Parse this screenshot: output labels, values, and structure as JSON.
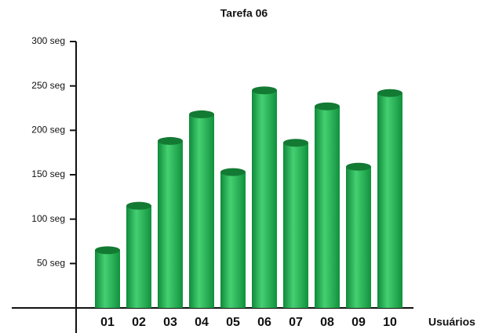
{
  "chart_data": {
    "type": "bar",
    "title": "Tarefa 06",
    "x_label": "Usuários",
    "categories": [
      "01",
      "02",
      "03",
      "04",
      "05",
      "06",
      "07",
      "08",
      "09",
      "10"
    ],
    "values": [
      65,
      115,
      188,
      218,
      153,
      245,
      186,
      227,
      159,
      242
    ],
    "color": "#2fb85a",
    "ylim": [
      0,
      300
    ],
    "yticks": [
      {
        "value": 50,
        "label": "50 seg"
      },
      {
        "value": 100,
        "label": "100 seg"
      },
      {
        "value": 150,
        "label": "150 seg"
      },
      {
        "value": 200,
        "label": "200 seg"
      },
      {
        "value": 250,
        "label": "250 seg"
      },
      {
        "value": 300,
        "label": "300 seg"
      }
    ],
    "grid": false
  }
}
